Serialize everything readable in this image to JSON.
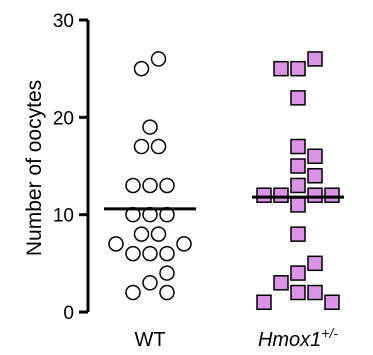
{
  "chart_data": {
    "type": "scatter",
    "ylabel": "Number of oocytes",
    "ylim": [
      0,
      30
    ],
    "yticks": [
      0,
      10,
      20,
      30
    ],
    "grid": false,
    "legend": "none",
    "categories": [
      {
        "label": "WT",
        "label_sup": ""
      },
      {
        "label": "Hmox1",
        "label_sup": "+/-"
      }
    ],
    "series": [
      {
        "category": "WT",
        "marker": "circle",
        "fill": "#ffffff",
        "stroke": "#000000",
        "mean": 10.6,
        "points": [
          {
            "y": 26,
            "offset": 0.5
          },
          {
            "y": 25,
            "offset": -0.5
          },
          {
            "y": 19,
            "offset": 0
          },
          {
            "y": 17,
            "offset": -0.5
          },
          {
            "y": 17,
            "offset": 0.5
          },
          {
            "y": 13,
            "offset": -1
          },
          {
            "y": 13,
            "offset": 0
          },
          {
            "y": 13,
            "offset": 1
          },
          {
            "y": 10,
            "offset": -1
          },
          {
            "y": 10,
            "offset": 0
          },
          {
            "y": 10,
            "offset": 1
          },
          {
            "y": 8,
            "offset": -0.5
          },
          {
            "y": 8,
            "offset": 0.5
          },
          {
            "y": 7,
            "offset": -2
          },
          {
            "y": 7,
            "offset": 2
          },
          {
            "y": 6,
            "offset": -1
          },
          {
            "y": 6,
            "offset": 0
          },
          {
            "y": 6,
            "offset": 1
          },
          {
            "y": 4,
            "offset": 1
          },
          {
            "y": 3,
            "offset": 0
          },
          {
            "y": 2,
            "offset": -1
          },
          {
            "y": 2,
            "offset": 1
          }
        ]
      },
      {
        "category": "Hmox1+/-",
        "marker": "square",
        "fill": "#da93e6",
        "stroke": "#000000",
        "mean": 11.8,
        "points": [
          {
            "y": 26,
            "offset": 1
          },
          {
            "y": 25,
            "offset": -1
          },
          {
            "y": 25,
            "offset": 0
          },
          {
            "y": 22,
            "offset": 0
          },
          {
            "y": 17,
            "offset": 0
          },
          {
            "y": 16,
            "offset": 1
          },
          {
            "y": 15,
            "offset": 0
          },
          {
            "y": 14,
            "offset": 1
          },
          {
            "y": 13,
            "offset": 0
          },
          {
            "y": 12,
            "offset": -2
          },
          {
            "y": 12,
            "offset": -1
          },
          {
            "y": 12,
            "offset": 1
          },
          {
            "y": 12,
            "offset": 2
          },
          {
            "y": 11,
            "offset": 0
          },
          {
            "y": 8,
            "offset": 0
          },
          {
            "y": 5,
            "offset": 1
          },
          {
            "y": 4,
            "offset": 0
          },
          {
            "y": 3,
            "offset": -1
          },
          {
            "y": 2,
            "offset": 0
          },
          {
            "y": 2,
            "offset": 1
          },
          {
            "y": 1,
            "offset": -2
          },
          {
            "y": 1,
            "offset": 2
          }
        ]
      }
    ]
  }
}
